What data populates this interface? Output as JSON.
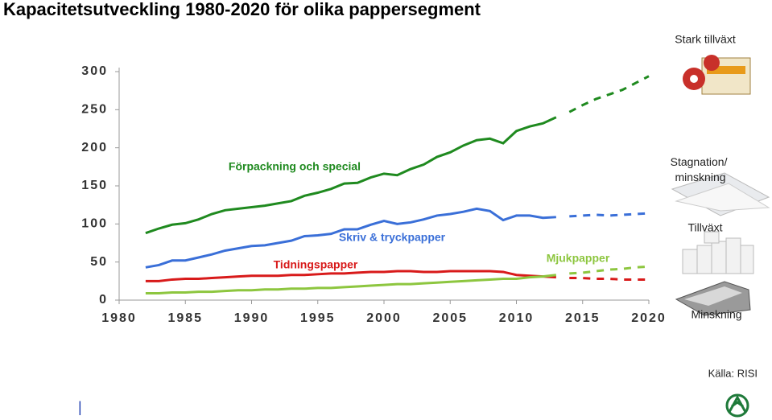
{
  "chart_data": {
    "type": "line",
    "title": "Kapacitetsutveckling 1980-2020 för olika pappersegment",
    "x": [
      1982,
      1983,
      1984,
      1985,
      1986,
      1987,
      1988,
      1989,
      1990,
      1991,
      1992,
      1993,
      1994,
      1995,
      1996,
      1997,
      1998,
      1999,
      2000,
      2001,
      2002,
      2003,
      2004,
      2005,
      2006,
      2007,
      2008,
      2009,
      2010,
      2011,
      2012,
      2013,
      2014,
      2015,
      2016,
      2017,
      2018,
      2019,
      2020
    ],
    "dashed_from": 2014,
    "series": [
      {
        "name": "Förpackning och special",
        "color": "#1f8a1f",
        "values": [
          88,
          94,
          99,
          101,
          106,
          113,
          118,
          120,
          122,
          124,
          127,
          130,
          137,
          141,
          146,
          153,
          154,
          161,
          166,
          164,
          172,
          178,
          188,
          194,
          203,
          210,
          212,
          206,
          222,
          228,
          232,
          240,
          247,
          256,
          264,
          270,
          276,
          285,
          294
        ]
      },
      {
        "name": "Skriv & tryckpapper",
        "color": "#3a6fd8",
        "values": [
          43,
          46,
          52,
          52,
          56,
          60,
          65,
          68,
          71,
          72,
          75,
          78,
          84,
          85,
          87,
          93,
          93,
          99,
          104,
          100,
          102,
          106,
          111,
          113,
          116,
          120,
          117,
          105,
          111,
          111,
          108,
          109,
          110,
          111,
          112,
          111,
          112,
          113,
          114
        ]
      },
      {
        "name": "Tidningspapper",
        "color": "#d81a1a",
        "values": [
          25,
          25,
          27,
          28,
          28,
          29,
          30,
          31,
          32,
          32,
          32,
          33,
          33,
          34,
          35,
          35,
          36,
          37,
          37,
          38,
          38,
          37,
          37,
          38,
          38,
          38,
          38,
          37,
          33,
          32,
          31,
          30,
          29,
          29,
          28,
          28,
          27,
          27,
          27
        ]
      },
      {
        "name": "Mjukpapper",
        "color": "#8dc63f",
        "values": [
          9,
          9,
          10,
          10,
          11,
          11,
          12,
          13,
          13,
          14,
          14,
          15,
          15,
          16,
          16,
          17,
          18,
          19,
          20,
          21,
          21,
          22,
          23,
          24,
          25,
          26,
          27,
          28,
          28,
          30,
          31,
          33,
          35,
          36,
          38,
          40,
          41,
          43,
          44
        ]
      }
    ],
    "xlim": [
      1980,
      2020
    ],
    "xticks": [
      1980,
      1985,
      1990,
      1995,
      2000,
      2005,
      2010,
      2015,
      2020
    ],
    "ylim": [
      0,
      300
    ],
    "yticks": [
      0,
      50,
      100,
      150,
      200,
      250,
      300
    ],
    "segment_notes": [
      "Stark tillväxt",
      "Stagnation/ minskning",
      "Tillväxt",
      "Minskning"
    ],
    "source": "Källa: RISI"
  }
}
